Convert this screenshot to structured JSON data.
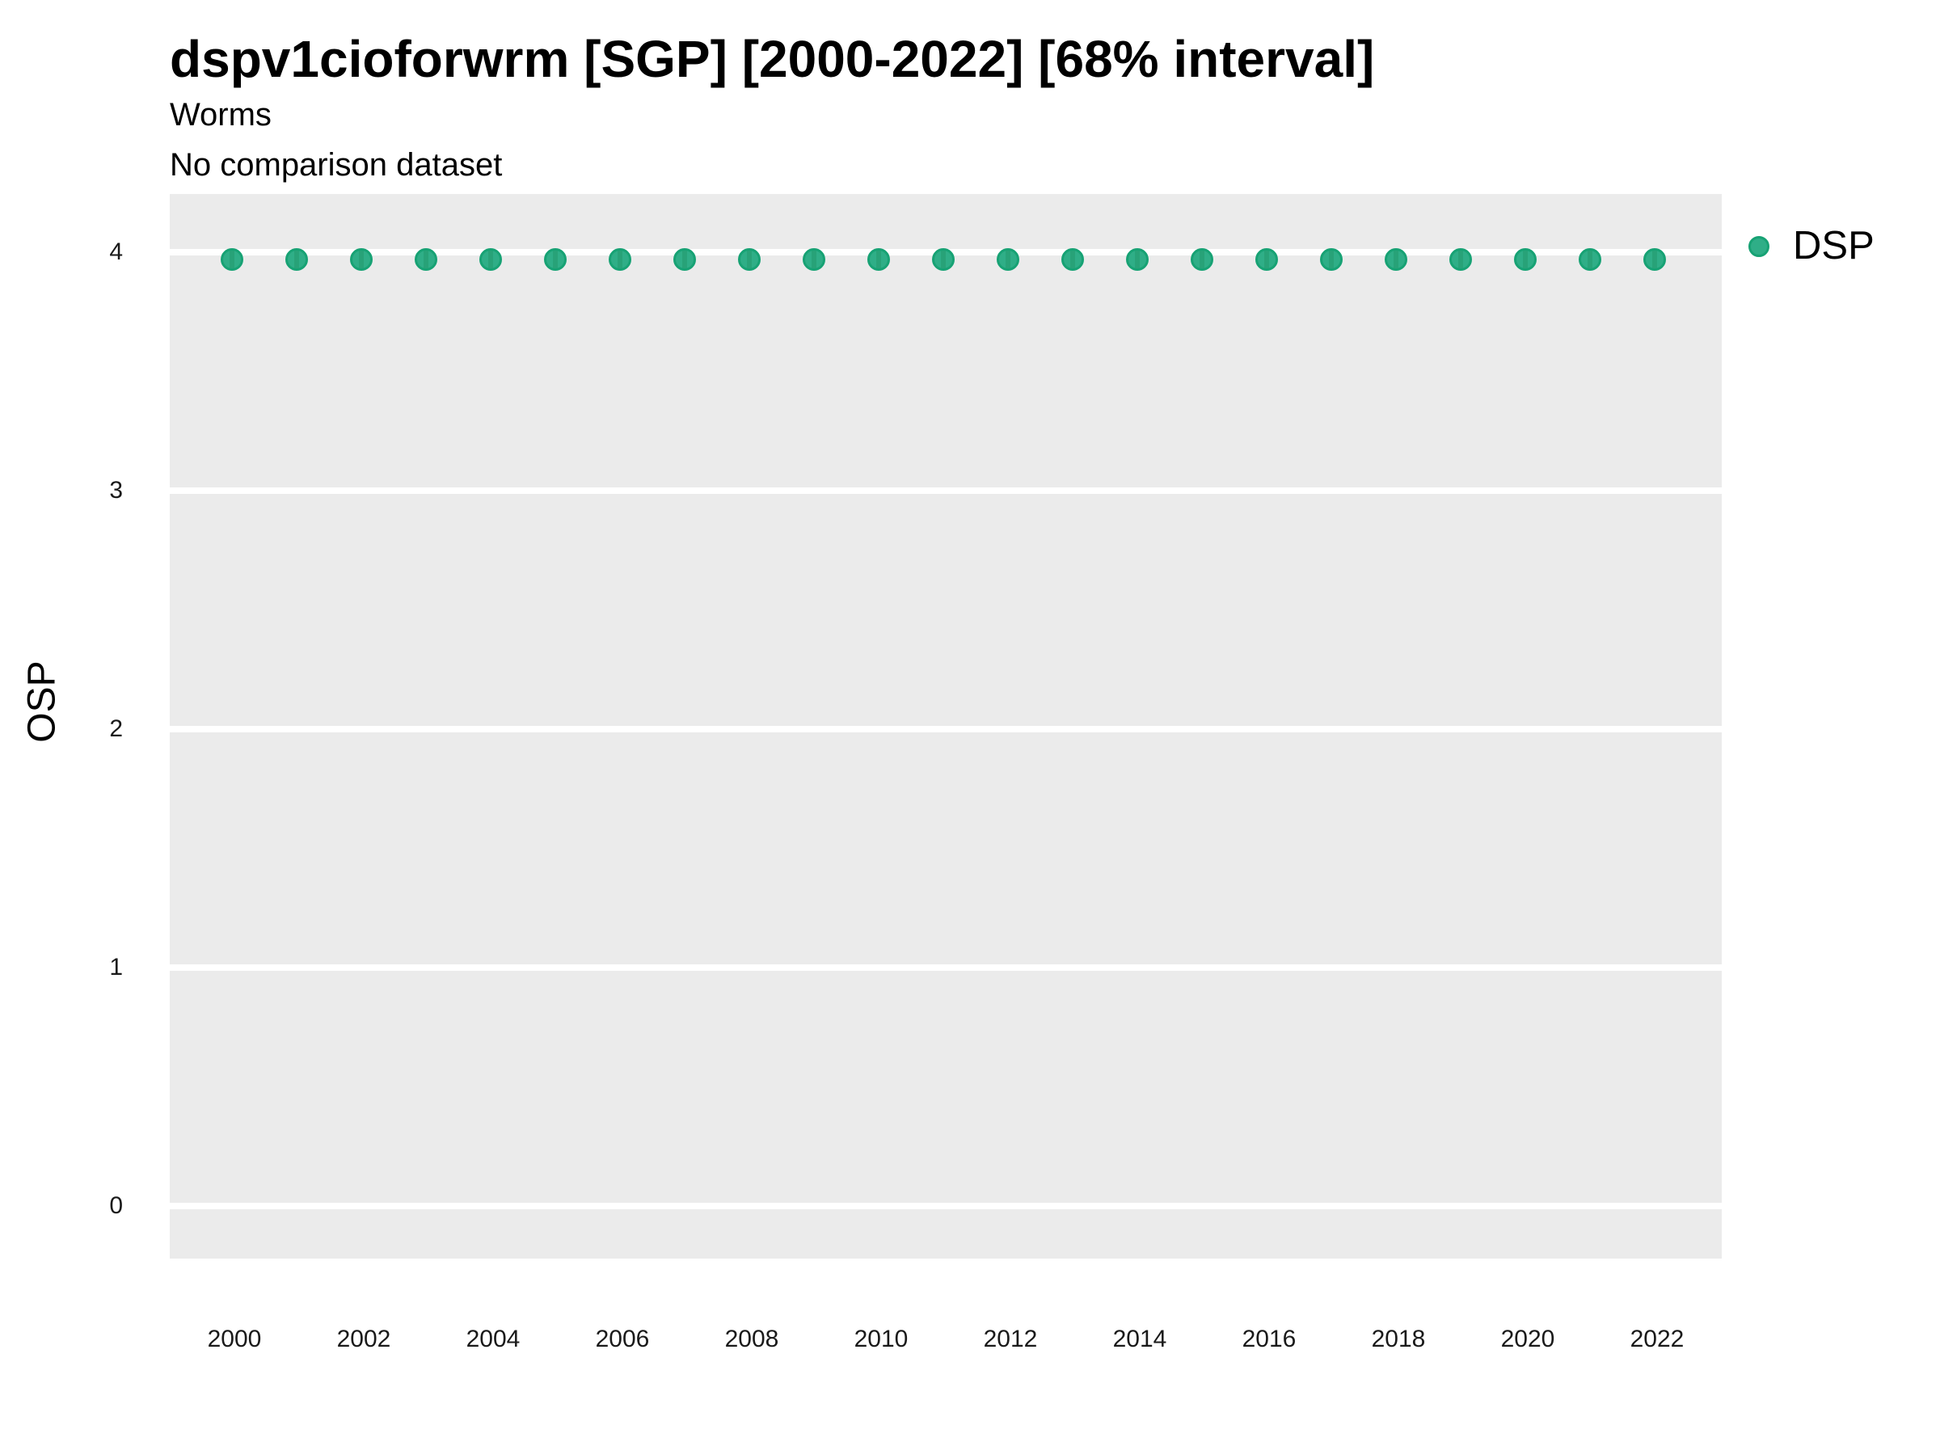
{
  "header": {
    "title": "dspv1cioforwrm [SGP] [2000-2022] [68% interval]",
    "subtitle": "Worms",
    "comparison_note": "No comparison dataset"
  },
  "legend": {
    "position": "right-top",
    "items": [
      {
        "label": "DSP",
        "marker": "circle",
        "color": "#2FAE87"
      }
    ]
  },
  "chart_data": {
    "type": "scatter",
    "title": "dspv1cioforwrm [SGP] [2000-2022] [68% interval]",
    "subtitle": "Worms",
    "note": "No comparison dataset",
    "xlabel": "",
    "ylabel": "OSP",
    "x": [
      2000,
      2001,
      2002,
      2003,
      2004,
      2005,
      2006,
      2007,
      2008,
      2009,
      2010,
      2011,
      2012,
      2013,
      2014,
      2015,
      2016,
      2017,
      2018,
      2019,
      2020,
      2021,
      2022
    ],
    "series": [
      {
        "name": "DSP",
        "values": [
          3.96,
          3.96,
          3.96,
          3.96,
          3.96,
          3.96,
          3.96,
          3.96,
          3.96,
          3.96,
          3.96,
          3.96,
          3.96,
          3.96,
          3.96,
          3.96,
          3.96,
          3.96,
          3.96,
          3.96,
          3.96,
          3.96,
          3.96
        ]
      }
    ],
    "xticks": [
      2000,
      2002,
      2004,
      2006,
      2008,
      2010,
      2012,
      2014,
      2016,
      2018,
      2020,
      2022
    ],
    "yticks": [
      0,
      1,
      2,
      3,
      4
    ],
    "ylim": [
      -0.22,
      4.25
    ],
    "xlim": [
      1999,
      2023
    ],
    "grid": "major-horizontal-only",
    "legend_position": "right-top",
    "colors": {
      "panel_bg": "#EBEBEB",
      "grid": "#FFFFFF",
      "marker_fill": "#2FAE87",
      "marker_core": "#28A278",
      "marker_stroke": "#17A274"
    }
  }
}
